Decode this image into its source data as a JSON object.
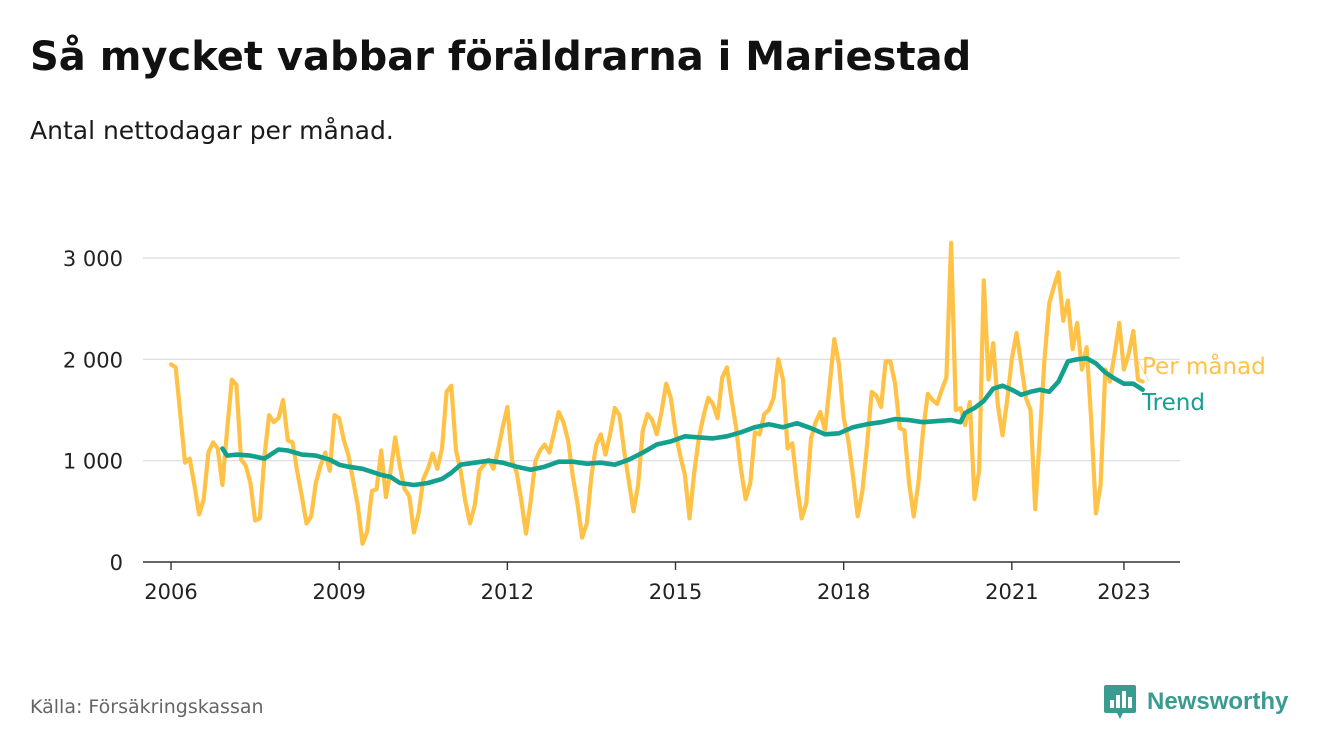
{
  "title": "Så mycket vabbar föräldrarna i Mariestad",
  "subtitle": "Antal nettodagar per månad.",
  "source": "Källa: Försäkringskassan",
  "brand": {
    "name": "Newsworthy",
    "icon": "newsworthy-logo-icon"
  },
  "colors": {
    "monthly": "#ffc247",
    "trend": "#14a08e",
    "grid": "#dcdcdc",
    "axis": "#333333"
  },
  "chart_data": {
    "type": "line",
    "title": "Så mycket vabbar föräldrarna i Mariestad",
    "subtitle": "Antal nettodagar per månad.",
    "xlim": [
      "2005-07-01",
      "2024-01-01"
    ],
    "ylim": [
      0,
      3000
    ],
    "y_ticks": [
      0,
      1000,
      2000,
      3000
    ],
    "y_tick_labels": [
      "0",
      "1 000",
      "2 000",
      "3 000"
    ],
    "x_ticks": [
      "2006-01-01",
      "2009-01-01",
      "2012-01-01",
      "2015-01-01",
      "2018-01-01",
      "2021-01-01",
      "2023-01-01"
    ],
    "x_tick_labels": [
      "2006",
      "2009",
      "2012",
      "2015",
      "2018",
      "2021",
      "2023"
    ],
    "grid": true,
    "legend": "right",
    "series": [
      {
        "name": "Per månad",
        "points": [
          [
            "2006-01",
            1950
          ],
          [
            "2006-02",
            1920
          ],
          [
            "2006-03",
            1450
          ],
          [
            "2006-04",
            980
          ],
          [
            "2006-05",
            1020
          ],
          [
            "2006-06",
            760
          ],
          [
            "2006-07",
            470
          ],
          [
            "2006-08",
            620
          ],
          [
            "2006-09",
            1080
          ],
          [
            "2006-10",
            1180
          ],
          [
            "2006-11",
            1120
          ],
          [
            "2006-12",
            760
          ],
          [
            "2007-01",
            1300
          ],
          [
            "2007-02",
            1800
          ],
          [
            "2007-03",
            1750
          ],
          [
            "2007-04",
            1010
          ],
          [
            "2007-05",
            950
          ],
          [
            "2007-06",
            780
          ],
          [
            "2007-07",
            410
          ],
          [
            "2007-08",
            430
          ],
          [
            "2007-09",
            1050
          ],
          [
            "2007-10",
            1450
          ],
          [
            "2007-11",
            1380
          ],
          [
            "2007-12",
            1420
          ],
          [
            "2008-01",
            1600
          ],
          [
            "2008-02",
            1200
          ],
          [
            "2008-03",
            1180
          ],
          [
            "2008-04",
            900
          ],
          [
            "2008-05",
            650
          ],
          [
            "2008-06",
            380
          ],
          [
            "2008-07",
            450
          ],
          [
            "2008-08",
            780
          ],
          [
            "2008-09",
            950
          ],
          [
            "2008-10",
            1080
          ],
          [
            "2008-11",
            900
          ],
          [
            "2008-12",
            1450
          ],
          [
            "2009-01",
            1420
          ],
          [
            "2009-02",
            1200
          ],
          [
            "2009-03",
            1050
          ],
          [
            "2009-04",
            800
          ],
          [
            "2009-05",
            550
          ],
          [
            "2009-06",
            180
          ],
          [
            "2009-07",
            300
          ],
          [
            "2009-08",
            700
          ],
          [
            "2009-09",
            720
          ],
          [
            "2009-10",
            1100
          ],
          [
            "2009-11",
            640
          ],
          [
            "2009-12",
            900
          ],
          [
            "2010-01",
            1230
          ],
          [
            "2010-02",
            940
          ],
          [
            "2010-03",
            720
          ],
          [
            "2010-04",
            650
          ],
          [
            "2010-05",
            290
          ],
          [
            "2010-06",
            480
          ],
          [
            "2010-07",
            820
          ],
          [
            "2010-08",
            920
          ],
          [
            "2010-09",
            1070
          ],
          [
            "2010-10",
            920
          ],
          [
            "2010-11",
            1120
          ],
          [
            "2010-12",
            1680
          ],
          [
            "2011-01",
            1740
          ],
          [
            "2011-02",
            1100
          ],
          [
            "2011-03",
            900
          ],
          [
            "2011-04",
            600
          ],
          [
            "2011-05",
            380
          ],
          [
            "2011-06",
            560
          ],
          [
            "2011-07",
            900
          ],
          [
            "2011-08",
            960
          ],
          [
            "2011-09",
            1010
          ],
          [
            "2011-10",
            920
          ],
          [
            "2011-11",
            1100
          ],
          [
            "2011-12",
            1330
          ],
          [
            "2012-01",
            1530
          ],
          [
            "2012-02",
            1000
          ],
          [
            "2012-03",
            880
          ],
          [
            "2012-04",
            600
          ],
          [
            "2012-05",
            280
          ],
          [
            "2012-06",
            600
          ],
          [
            "2012-07",
            1000
          ],
          [
            "2012-08",
            1100
          ],
          [
            "2012-09",
            1160
          ],
          [
            "2012-10",
            1080
          ],
          [
            "2012-11",
            1280
          ],
          [
            "2012-12",
            1480
          ],
          [
            "2013-01",
            1380
          ],
          [
            "2013-02",
            1200
          ],
          [
            "2013-03",
            850
          ],
          [
            "2013-04",
            580
          ],
          [
            "2013-05",
            240
          ],
          [
            "2013-06",
            380
          ],
          [
            "2013-07",
            850
          ],
          [
            "2013-08",
            1150
          ],
          [
            "2013-09",
            1260
          ],
          [
            "2013-10",
            1060
          ],
          [
            "2013-11",
            1260
          ],
          [
            "2013-12",
            1520
          ],
          [
            "2014-01",
            1450
          ],
          [
            "2014-02",
            1100
          ],
          [
            "2014-03",
            800
          ],
          [
            "2014-04",
            500
          ],
          [
            "2014-05",
            760
          ],
          [
            "2014-06",
            1300
          ],
          [
            "2014-07",
            1460
          ],
          [
            "2014-08",
            1400
          ],
          [
            "2014-09",
            1260
          ],
          [
            "2014-10",
            1480
          ],
          [
            "2014-11",
            1760
          ],
          [
            "2014-12",
            1620
          ],
          [
            "2015-01",
            1280
          ],
          [
            "2015-02",
            1050
          ],
          [
            "2015-03",
            860
          ],
          [
            "2015-04",
            430
          ],
          [
            "2015-05",
            880
          ],
          [
            "2015-06",
            1230
          ],
          [
            "2015-07",
            1440
          ],
          [
            "2015-08",
            1620
          ],
          [
            "2015-09",
            1560
          ],
          [
            "2015-10",
            1420
          ],
          [
            "2015-11",
            1820
          ],
          [
            "2015-12",
            1920
          ],
          [
            "2016-01",
            1600
          ],
          [
            "2016-02",
            1320
          ],
          [
            "2016-03",
            920
          ],
          [
            "2016-04",
            620
          ],
          [
            "2016-05",
            780
          ],
          [
            "2016-06",
            1280
          ],
          [
            "2016-07",
            1260
          ],
          [
            "2016-08",
            1460
          ],
          [
            "2016-09",
            1500
          ],
          [
            "2016-10",
            1620
          ],
          [
            "2016-11",
            2000
          ],
          [
            "2016-12",
            1800
          ],
          [
            "2017-01",
            1120
          ],
          [
            "2017-02",
            1170
          ],
          [
            "2017-03",
            760
          ],
          [
            "2017-04",
            430
          ],
          [
            "2017-05",
            580
          ],
          [
            "2017-06",
            1220
          ],
          [
            "2017-07",
            1380
          ],
          [
            "2017-08",
            1480
          ],
          [
            "2017-09",
            1300
          ],
          [
            "2017-10",
            1750
          ],
          [
            "2017-11",
            2200
          ],
          [
            "2017-12",
            1950
          ],
          [
            "2018-01",
            1420
          ],
          [
            "2018-02",
            1200
          ],
          [
            "2018-03",
            850
          ],
          [
            "2018-04",
            450
          ],
          [
            "2018-05",
            700
          ],
          [
            "2018-06",
            1150
          ],
          [
            "2018-07",
            1680
          ],
          [
            "2018-08",
            1640
          ],
          [
            "2018-09",
            1530
          ],
          [
            "2018-10",
            1980
          ],
          [
            "2018-11",
            1980
          ],
          [
            "2018-12",
            1760
          ],
          [
            "2019-01",
            1320
          ],
          [
            "2019-02",
            1300
          ],
          [
            "2019-03",
            780
          ],
          [
            "2019-04",
            450
          ],
          [
            "2019-05",
            780
          ],
          [
            "2019-06",
            1300
          ],
          [
            "2019-07",
            1660
          ],
          [
            "2019-08",
            1600
          ],
          [
            "2019-09",
            1560
          ],
          [
            "2019-10",
            1700
          ],
          [
            "2019-11",
            1820
          ],
          [
            "2019-12",
            3150
          ],
          [
            "2020-01",
            1500
          ],
          [
            "2020-02",
            1520
          ],
          [
            "2020-03",
            1350
          ],
          [
            "2020-04",
            1580
          ],
          [
            "2020-05",
            620
          ],
          [
            "2020-06",
            900
          ],
          [
            "2020-07",
            2780
          ],
          [
            "2020-08",
            1800
          ],
          [
            "2020-09",
            2160
          ],
          [
            "2020-10",
            1550
          ],
          [
            "2020-11",
            1250
          ],
          [
            "2020-12",
            1600
          ],
          [
            "2021-01",
            2000
          ],
          [
            "2021-02",
            2260
          ],
          [
            "2021-03",
            1950
          ],
          [
            "2021-04",
            1620
          ],
          [
            "2021-05",
            1500
          ],
          [
            "2021-06",
            520
          ],
          [
            "2021-07",
            1250
          ],
          [
            "2021-08",
            2000
          ],
          [
            "2021-09",
            2550
          ],
          [
            "2021-10",
            2720
          ],
          [
            "2021-11",
            2860
          ],
          [
            "2021-12",
            2380
          ],
          [
            "2022-01",
            2580
          ],
          [
            "2022-02",
            2100
          ],
          [
            "2022-03",
            2360
          ],
          [
            "2022-04",
            1900
          ],
          [
            "2022-05",
            2120
          ],
          [
            "2022-06",
            1400
          ],
          [
            "2022-07",
            480
          ],
          [
            "2022-08",
            760
          ],
          [
            "2022-09",
            1900
          ],
          [
            "2022-10",
            1780
          ],
          [
            "2022-11",
            2050
          ],
          [
            "2022-12",
            2360
          ],
          [
            "2023-01",
            1900
          ],
          [
            "2023-02",
            2050
          ],
          [
            "2023-03",
            2280
          ],
          [
            "2023-04",
            1800
          ],
          [
            "2023-05",
            1780
          ]
        ]
      },
      {
        "name": "Trend",
        "points": [
          [
            "2006-12",
            1120
          ],
          [
            "2007-01",
            1050
          ],
          [
            "2007-03",
            1060
          ],
          [
            "2007-06",
            1050
          ],
          [
            "2007-09",
            1020
          ],
          [
            "2007-12",
            1110
          ],
          [
            "2008-02",
            1100
          ],
          [
            "2008-05",
            1060
          ],
          [
            "2008-08",
            1050
          ],
          [
            "2008-11",
            1010
          ],
          [
            "2009-01",
            960
          ],
          [
            "2009-03",
            940
          ],
          [
            "2009-06",
            920
          ],
          [
            "2009-08",
            890
          ],
          [
            "2009-10",
            860
          ],
          [
            "2009-12",
            840
          ],
          [
            "2010-02",
            780
          ],
          [
            "2010-05",
            760
          ],
          [
            "2010-08",
            780
          ],
          [
            "2010-11",
            820
          ],
          [
            "2011-01",
            880
          ],
          [
            "2011-03",
            960
          ],
          [
            "2011-06",
            980
          ],
          [
            "2011-09",
            1000
          ],
          [
            "2011-12",
            980
          ],
          [
            "2012-03",
            940
          ],
          [
            "2012-06",
            910
          ],
          [
            "2012-09",
            940
          ],
          [
            "2012-12",
            990
          ],
          [
            "2013-03",
            990
          ],
          [
            "2013-06",
            970
          ],
          [
            "2013-09",
            980
          ],
          [
            "2013-12",
            960
          ],
          [
            "2014-03",
            1010
          ],
          [
            "2014-06",
            1080
          ],
          [
            "2014-09",
            1160
          ],
          [
            "2014-12",
            1190
          ],
          [
            "2015-03",
            1240
          ],
          [
            "2015-06",
            1230
          ],
          [
            "2015-09",
            1220
          ],
          [
            "2015-12",
            1240
          ],
          [
            "2016-03",
            1280
          ],
          [
            "2016-06",
            1330
          ],
          [
            "2016-09",
            1360
          ],
          [
            "2016-12",
            1330
          ],
          [
            "2017-03",
            1370
          ],
          [
            "2017-06",
            1320
          ],
          [
            "2017-09",
            1260
          ],
          [
            "2017-12",
            1270
          ],
          [
            "2018-03",
            1330
          ],
          [
            "2018-06",
            1360
          ],
          [
            "2018-09",
            1380
          ],
          [
            "2018-12",
            1410
          ],
          [
            "2019-03",
            1400
          ],
          [
            "2019-06",
            1380
          ],
          [
            "2019-09",
            1390
          ],
          [
            "2019-12",
            1400
          ],
          [
            "2020-02",
            1380
          ],
          [
            "2020-03",
            1470
          ],
          [
            "2020-05",
            1520
          ],
          [
            "2020-07",
            1590
          ],
          [
            "2020-09",
            1710
          ],
          [
            "2020-11",
            1740
          ],
          [
            "2021-01",
            1700
          ],
          [
            "2021-03",
            1650
          ],
          [
            "2021-05",
            1680
          ],
          [
            "2021-07",
            1700
          ],
          [
            "2021-09",
            1680
          ],
          [
            "2021-11",
            1780
          ],
          [
            "2022-01",
            1980
          ],
          [
            "2022-03",
            2000
          ],
          [
            "2022-05",
            2010
          ],
          [
            "2022-07",
            1960
          ],
          [
            "2022-09",
            1870
          ],
          [
            "2022-11",
            1810
          ],
          [
            "2023-01",
            1760
          ],
          [
            "2023-03",
            1760
          ],
          [
            "2023-05",
            1700
          ]
        ]
      }
    ]
  }
}
